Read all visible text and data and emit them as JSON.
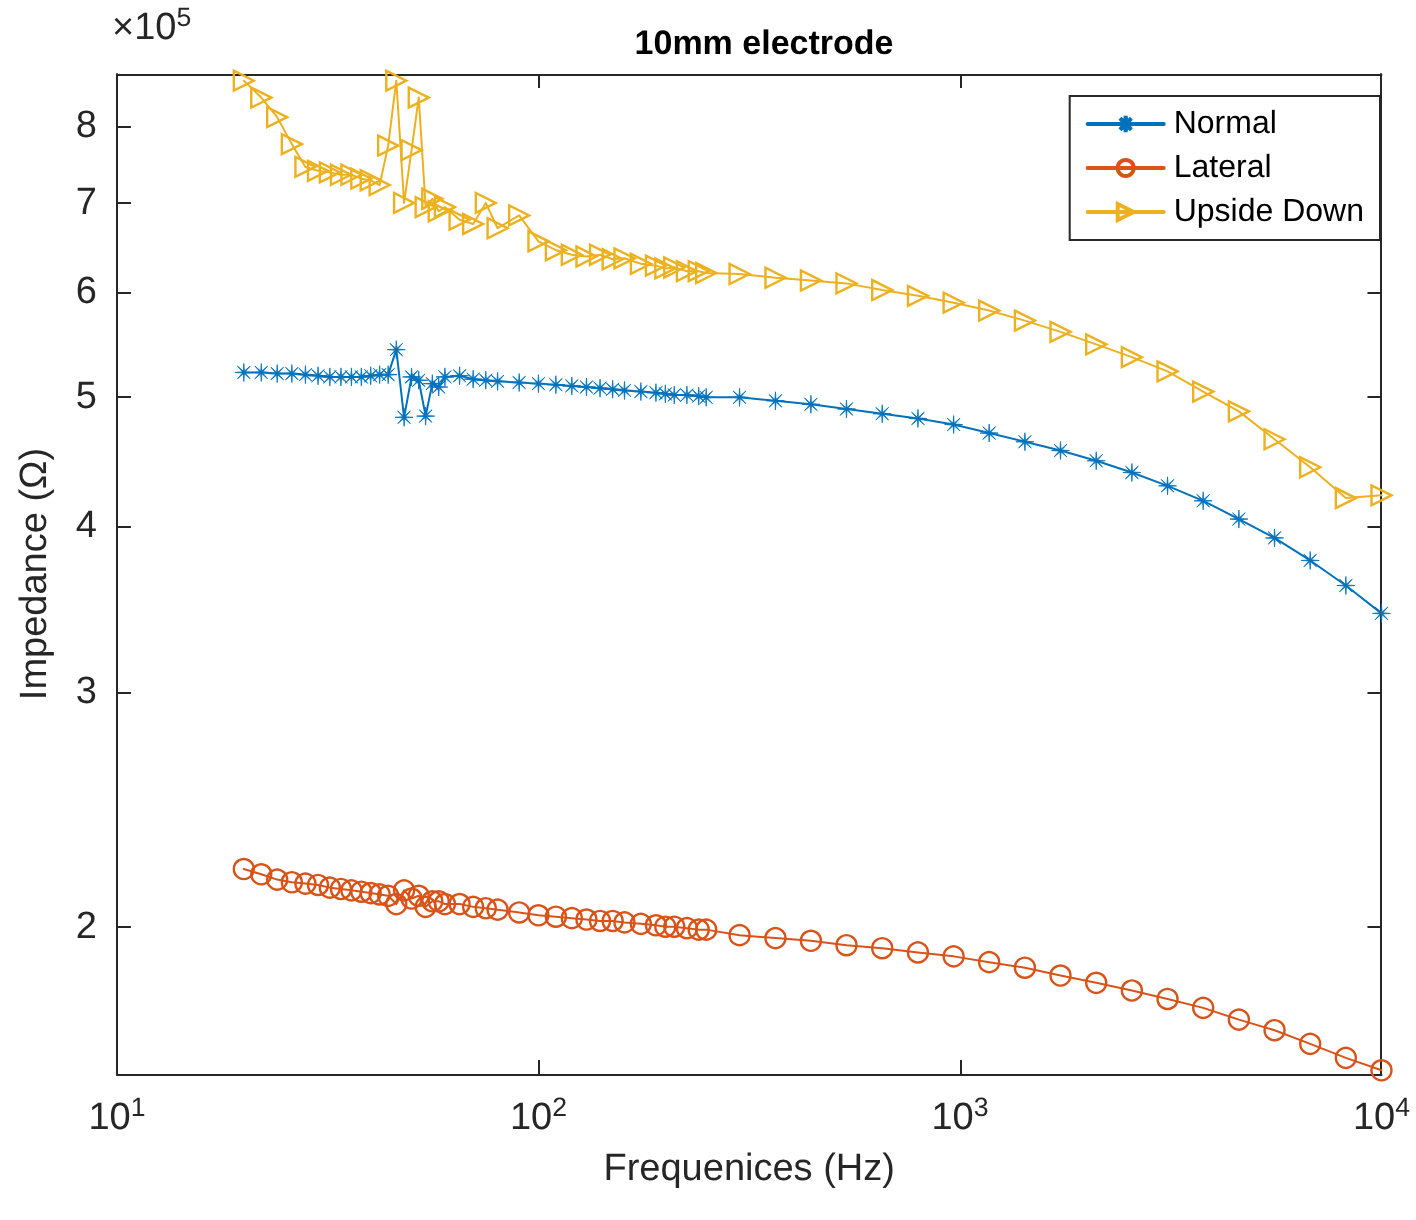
{
  "chart_data": {
    "type": "line",
    "title": "10mm electrode",
    "xlabel": "Frequenices (Hz)",
    "ylabel": "Impedance (Ω)",
    "annotations": [
      "×10$^{5}$"
    ],
    "log": "xy",
    "grid": false,
    "legend": "top right",
    "xlim": [
      10,
      10000
    ],
    "xticks": [
      {
        "value": 10,
        "label": "10$^{1}$"
      },
      {
        "value": 100,
        "label": "10$^{2}$"
      },
      {
        "value": 1000,
        "label": "10$^{3}$"
      },
      {
        "value": 10000,
        "label": "10$^{4}$"
      }
    ],
    "ylim": [
      1.55,
      8.75
    ],
    "yticks": [
      2,
      3,
      4,
      5,
      6,
      7,
      8
    ],
    "x": [
      20,
      22,
      24,
      26,
      28,
      30,
      32,
      34,
      36,
      38,
      40,
      42,
      44,
      46,
      48,
      50,
      52,
      54,
      56,
      58,
      60,
      65,
      70,
      75,
      80,
      90,
      100,
      110,
      120,
      130,
      140,
      150,
      160,
      175,
      190,
      200,
      210,
      225,
      240,
      250,
      300,
      365,
      443,
      538,
      654,
      795,
      966,
      1173,
      1426,
      1732,
      2105,
      2558,
      3108,
      3776,
      4589,
      5576,
      6775,
      8232,
      10000
    ],
    "series": [
      {
        "name": "Normal",
        "color": "#0072bd",
        "marker": "star",
        "values": [
          5.22,
          5.22,
          5.21,
          5.21,
          5.2,
          5.19,
          5.18,
          5.18,
          5.18,
          5.18,
          5.19,
          5.2,
          5.2,
          5.43,
          4.83,
          5.18,
          5.15,
          4.84,
          5.12,
          5.09,
          5.18,
          5.19,
          5.16,
          5.15,
          5.14,
          5.13,
          5.12,
          5.11,
          5.1,
          5.09,
          5.08,
          5.07,
          5.06,
          5.05,
          5.04,
          5.03,
          5.02,
          5.02,
          5.01,
          5.0,
          5.0,
          4.97,
          4.94,
          4.9,
          4.86,
          4.82,
          4.77,
          4.7,
          4.63,
          4.56,
          4.48,
          4.39,
          4.29,
          4.18,
          4.05,
          3.92,
          3.77,
          3.61,
          3.44
        ]
      },
      {
        "name": "Lateral",
        "color": "#d95319",
        "marker": "circle",
        "values": [
          2.21,
          2.19,
          2.17,
          2.16,
          2.155,
          2.15,
          2.14,
          2.135,
          2.13,
          2.125,
          2.12,
          2.115,
          2.11,
          2.08,
          2.13,
          2.1,
          2.11,
          2.07,
          2.09,
          2.09,
          2.08,
          2.08,
          2.07,
          2.065,
          2.06,
          2.05,
          2.04,
          2.035,
          2.03,
          2.025,
          2.02,
          2.02,
          2.015,
          2.01,
          2.005,
          2.0,
          2.0,
          1.995,
          1.99,
          1.99,
          1.971,
          1.961,
          1.952,
          1.937,
          1.927,
          1.913,
          1.9,
          1.881,
          1.863,
          1.838,
          1.815,
          1.791,
          1.765,
          1.738,
          1.703,
          1.672,
          1.633,
          1.594,
          1.56
        ]
      },
      {
        "name": "Upside Down",
        "color": "#edb120",
        "marker": "triangle",
        "values": [
          8.65,
          8.4,
          8.12,
          7.75,
          7.45,
          7.4,
          7.38,
          7.35,
          7.35,
          7.3,
          7.28,
          7.22,
          7.73,
          8.65,
          7.0,
          7.67,
          8.4,
          6.95,
          7.05,
          6.9,
          6.95,
          6.8,
          6.75,
          7.0,
          6.7,
          6.85,
          6.55,
          6.45,
          6.4,
          6.38,
          6.4,
          6.35,
          6.36,
          6.3,
          6.28,
          6.25,
          6.26,
          6.22,
          6.22,
          6.2,
          6.19,
          6.15,
          6.12,
          6.09,
          6.02,
          5.96,
          5.89,
          5.81,
          5.71,
          5.6,
          5.48,
          5.36,
          5.23,
          5.05,
          4.88,
          4.65,
          4.43,
          4.2,
          4.22
        ]
      }
    ]
  }
}
